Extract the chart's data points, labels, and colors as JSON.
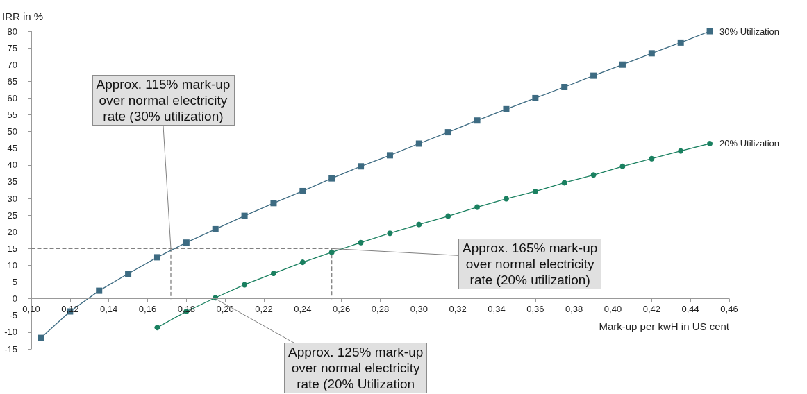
{
  "chart_data": {
    "type": "line",
    "ylabel": "IRR in %",
    "xlabel": "Mark-up per kwH in US cent",
    "series": [
      {
        "name": "30% Utilization",
        "color": "#3d6b82",
        "marker": "square",
        "x": [
          0.105,
          0.12,
          0.135,
          0.15,
          0.165,
          0.18,
          0.195,
          0.21,
          0.225,
          0.24,
          0.255,
          0.27,
          0.285,
          0.3,
          0.315,
          0.33,
          0.345,
          0.36,
          0.375,
          0.39,
          0.405,
          0.42,
          0.435,
          0.45
        ],
        "values": [
          -11.7,
          -3.8,
          2.4,
          7.5,
          12.4,
          16.8,
          20.8,
          24.8,
          28.6,
          32.2,
          36.0,
          39.6,
          42.9,
          46.4,
          49.8,
          53.3,
          56.7,
          60.0,
          63.3,
          66.7,
          70.0,
          73.4,
          76.6,
          80.0
        ]
      },
      {
        "name": "20% Utilization",
        "color": "#1a8060",
        "marker": "circle",
        "x": [
          0.165,
          0.18,
          0.195,
          0.21,
          0.225,
          0.24,
          0.255,
          0.27,
          0.285,
          0.3,
          0.315,
          0.33,
          0.345,
          0.36,
          0.375,
          0.39,
          0.405,
          0.42,
          0.435,
          0.45
        ],
        "values": [
          -8.6,
          -3.8,
          0.3,
          4.2,
          7.6,
          10.9,
          13.9,
          16.8,
          19.6,
          22.2,
          24.7,
          27.4,
          29.9,
          32.1,
          34.7,
          37.0,
          39.6,
          41.9,
          44.2,
          46.4
        ]
      },
      {
        "color": "#808080",
        "marker": "none",
        "line_style": "dashed",
        "x": [
          0.1,
          0.255,
          0.255
        ],
        "values": [
          15,
          15,
          0
        ]
      },
      {
        "color": "#808080",
        "marker": "none",
        "line_style": "dashed",
        "x": [
          0.172,
          0.172
        ],
        "values": [
          15,
          0
        ]
      }
    ],
    "xlim": [
      0.1,
      0.46
    ],
    "xticks": [
      {
        "value": 0.1,
        "label": "0,10"
      },
      {
        "value": 0.12,
        "label": "0,12"
      },
      {
        "value": 0.14,
        "label": "0,14"
      },
      {
        "value": 0.16,
        "label": "0,16"
      },
      {
        "value": 0.18,
        "label": "0,18"
      },
      {
        "value": 0.2,
        "label": "0,20"
      },
      {
        "value": 0.22,
        "label": "0,22"
      },
      {
        "value": 0.24,
        "label": "0,24"
      },
      {
        "value": 0.26,
        "label": "0,26"
      },
      {
        "value": 0.28,
        "label": "0,28"
      },
      {
        "value": 0.3,
        "label": "0,30"
      },
      {
        "value": 0.32,
        "label": "0,32"
      },
      {
        "value": 0.34,
        "label": "0,34"
      },
      {
        "value": 0.36,
        "label": "0,36"
      },
      {
        "value": 0.38,
        "label": "0,38"
      },
      {
        "value": 0.4,
        "label": "0,40"
      },
      {
        "value": 0.42,
        "label": "0,42"
      },
      {
        "value": 0.44,
        "label": "0,44"
      },
      {
        "value": 0.46,
        "label": "0,46"
      }
    ],
    "ylim": [
      -15,
      80
    ],
    "yticks": [
      -15,
      -10,
      -5,
      0,
      5,
      10,
      15,
      20,
      25,
      30,
      35,
      40,
      45,
      50,
      55,
      60,
      65,
      70,
      75,
      80
    ],
    "annotations": [
      {
        "text": "Approx. 115% mark-up\nover normal electricity\nrate (30% utilization)",
        "x": 0.172,
        "y": 15
      },
      {
        "text": "Approx. 165% mark-up\nover normal electricity\nrate (20% utilization)",
        "x": 0.255,
        "y": 15
      },
      {
        "text": "Approx. 125% mark-up\nover normal electricity\nrate (20% Utilization",
        "x": 0.195,
        "y": 0
      }
    ],
    "grid": false,
    "legend": false
  }
}
